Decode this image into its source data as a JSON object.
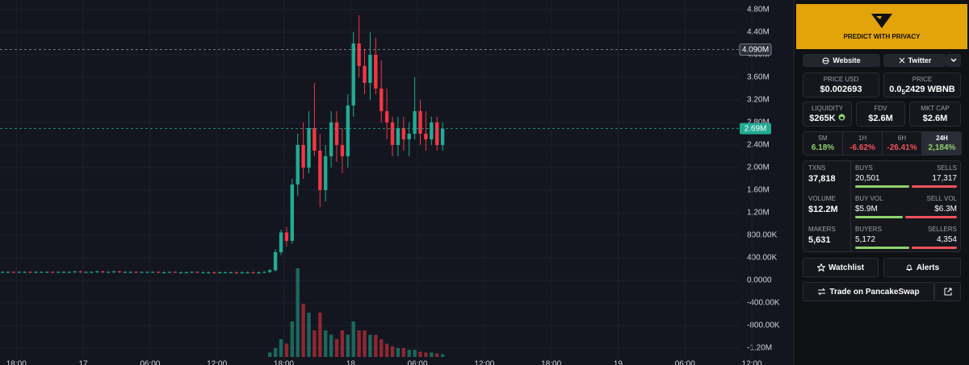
{
  "chart_data": {
    "type": "candlestick",
    "open": [
      0.15,
      0.15,
      0.15,
      0.14,
      0.15,
      0.15,
      0.14,
      0.15,
      0.15,
      0.15,
      0.14,
      0.15,
      0.15,
      0.15,
      0.16,
      0.15,
      0.15,
      0.15,
      0.16,
      0.15,
      0.15,
      0.16,
      0.15,
      0.15,
      0.15,
      0.14,
      0.15,
      0.15,
      0.15,
      0.14,
      0.14,
      0.15,
      0.14,
      0.14,
      0.14,
      0.15,
      0.14,
      0.14,
      0.14,
      0.13,
      0.14,
      0.14,
      0.14,
      0.13,
      0.14,
      0.14,
      0.13,
      0.14,
      0.15,
      0.18,
      0.5,
      0.85,
      0.7,
      1.7,
      2.4,
      2.0,
      2.7,
      2.3,
      1.6,
      2.2,
      2.8,
      2.4,
      2.2,
      3.1,
      4.2,
      3.8,
      3.5,
      4.0,
      3.4,
      3.0,
      2.8,
      2.4,
      2.7,
      2.5,
      2.6,
      3.0,
      2.6,
      2.5,
      2.8,
      2.4
    ],
    "high": [
      0.16,
      0.16,
      0.16,
      0.16,
      0.16,
      0.16,
      0.16,
      0.16,
      0.16,
      0.16,
      0.16,
      0.16,
      0.16,
      0.17,
      0.17,
      0.16,
      0.16,
      0.17,
      0.17,
      0.16,
      0.17,
      0.17,
      0.16,
      0.16,
      0.16,
      0.16,
      0.16,
      0.16,
      0.16,
      0.16,
      0.16,
      0.16,
      0.16,
      0.16,
      0.16,
      0.16,
      0.16,
      0.16,
      0.16,
      0.16,
      0.16,
      0.16,
      0.16,
      0.16,
      0.16,
      0.16,
      0.16,
      0.16,
      0.2,
      0.55,
      0.9,
      0.95,
      1.8,
      2.6,
      2.8,
      3.0,
      3.5,
      2.6,
      2.4,
      3.0,
      3.0,
      2.7,
      3.3,
      4.4,
      4.7,
      4.1,
      4.4,
      4.3,
      3.9,
      3.4,
      2.9,
      2.9,
      2.9,
      2.8,
      3.6,
      3.2,
      3.0,
      2.9,
      2.9,
      2.8
    ],
    "low": [
      0.13,
      0.13,
      0.13,
      0.13,
      0.13,
      0.13,
      0.13,
      0.13,
      0.13,
      0.13,
      0.13,
      0.13,
      0.13,
      0.13,
      0.13,
      0.13,
      0.13,
      0.13,
      0.13,
      0.13,
      0.13,
      0.13,
      0.13,
      0.13,
      0.13,
      0.13,
      0.13,
      0.13,
      0.13,
      0.13,
      0.13,
      0.13,
      0.13,
      0.13,
      0.13,
      0.13,
      0.13,
      0.13,
      0.12,
      0.12,
      0.13,
      0.13,
      0.12,
      0.12,
      0.13,
      0.12,
      0.12,
      0.13,
      0.13,
      0.16,
      0.45,
      0.6,
      0.65,
      1.5,
      1.8,
      1.9,
      2.2,
      1.3,
      1.4,
      2.0,
      2.1,
      1.9,
      2.0,
      2.9,
      3.6,
      3.3,
      3.2,
      3.3,
      2.8,
      2.5,
      2.2,
      2.2,
      2.3,
      2.2,
      2.5,
      2.4,
      2.3,
      2.4,
      2.3,
      2.3
    ],
    "close": [
      0.15,
      0.15,
      0.14,
      0.15,
      0.15,
      0.14,
      0.15,
      0.15,
      0.15,
      0.14,
      0.15,
      0.15,
      0.15,
      0.16,
      0.15,
      0.15,
      0.15,
      0.16,
      0.15,
      0.15,
      0.16,
      0.15,
      0.15,
      0.15,
      0.14,
      0.15,
      0.15,
      0.15,
      0.14,
      0.14,
      0.15,
      0.14,
      0.14,
      0.14,
      0.15,
      0.14,
      0.14,
      0.14,
      0.13,
      0.14,
      0.14,
      0.14,
      0.13,
      0.14,
      0.14,
      0.13,
      0.14,
      0.15,
      0.18,
      0.5,
      0.85,
      0.7,
      1.7,
      2.4,
      2.0,
      2.7,
      2.3,
      1.6,
      2.2,
      2.8,
      2.4,
      2.2,
      3.1,
      4.2,
      3.8,
      3.5,
      4.0,
      3.4,
      3.0,
      2.8,
      2.4,
      2.7,
      2.5,
      2.6,
      3.0,
      2.6,
      2.5,
      2.8,
      2.4,
      2.69
    ],
    "volume": [
      0,
      0,
      0,
      0,
      0,
      0,
      0,
      0,
      0,
      0,
      0,
      0,
      0,
      0,
      0,
      0,
      0,
      0,
      0,
      0,
      0,
      0,
      0,
      0,
      0,
      0,
      0,
      0,
      0,
      0,
      0,
      0,
      0,
      0,
      0,
      0,
      0,
      0,
      0,
      0,
      0,
      0,
      0,
      0,
      0,
      0,
      0,
      0,
      0.5,
      1,
      2,
      1.5,
      4,
      10,
      6,
      5,
      3,
      5,
      3,
      2.5,
      2,
      3,
      2.5,
      4,
      3,
      3,
      2.5,
      2.5,
      2,
      1.5,
      1.2,
      1,
      1,
      0.8,
      0.8,
      0.6,
      0.5,
      0.5,
      0.4,
      0.3
    ],
    "up_color": "#22ab94",
    "down_color": "#f23645",
    "ylim": [
      -1.5,
      4.97
    ],
    "yticks": [
      {
        "value": 4.8,
        "label": "4.80M"
      },
      {
        "value": 4.4,
        "label": "4.40M"
      },
      {
        "value": 4.0,
        "label": "4.00M"
      },
      {
        "value": 3.6,
        "label": "3.60M"
      },
      {
        "value": 3.2,
        "label": "3.20M"
      },
      {
        "value": 2.8,
        "label": "2.80M"
      },
      {
        "value": 2.4,
        "label": "2.40M"
      },
      {
        "value": 2.0,
        "label": "2.00M"
      },
      {
        "value": 1.6,
        "label": "1.60M"
      },
      {
        "value": 1.2,
        "label": "1.20M"
      },
      {
        "value": 0.8,
        "label": "800.00K"
      },
      {
        "value": 0.4,
        "label": "400.00K"
      },
      {
        "value": 0,
        "label": "0.0000"
      },
      {
        "value": -0.4,
        "label": "-400.00K"
      },
      {
        "value": -0.8,
        "label": "-800.00K"
      },
      {
        "value": -1.2,
        "label": "-1.20M"
      }
    ],
    "xticks": [
      {
        "value": 2.5,
        "label": "18:00"
      },
      {
        "value": 14.5,
        "label": "17"
      },
      {
        "value": 26.5,
        "label": "06:00"
      },
      {
        "value": 38.5,
        "label": "12:00"
      },
      {
        "value": 50.5,
        "label": "18:00"
      },
      {
        "value": 62.5,
        "label": "18"
      },
      {
        "value": 74.5,
        "label": "06:00"
      },
      {
        "value": 86.5,
        "label": "12:00"
      },
      {
        "value": 98.5,
        "label": "18:00"
      },
      {
        "value": 110.5,
        "label": "19"
      },
      {
        "value": 122.5,
        "label": "06:00"
      },
      {
        "value": 134.5,
        "label": "12:00"
      }
    ],
    "price_lines": [
      {
        "value": 4.09,
        "label": "4.090M",
        "color": "#2a2e39",
        "line": "#9598a1"
      },
      {
        "value": 2.69,
        "label": "2.69M",
        "color": "#22ab94",
        "line": "#22ab94"
      }
    ],
    "grid": true
  },
  "sidebar": {
    "banner": "PREDICT WITH PRIVACY",
    "links": [
      "Website",
      "Twitter"
    ],
    "price_usd": {
      "label": "PRICE USD",
      "value": "$0.002693"
    },
    "price_native": {
      "label": "PRICE",
      "prefix": "0.0",
      "subscript": "5",
      "value": "2429 WBNB"
    },
    "stats": [
      {
        "label": "LIQUIDITY",
        "value": "$265K"
      },
      {
        "label": "FDV",
        "value": "$2.6M"
      },
      {
        "label": "MKT CAP",
        "value": "$2.6M"
      }
    ],
    "timeframes": [
      {
        "label": "5M",
        "change": "6.18%"
      },
      {
        "label": "1H",
        "change": "-6.62%"
      },
      {
        "label": "6H",
        "change": "-26.41%"
      },
      {
        "label": "24H",
        "change": "2,184%"
      }
    ],
    "rows": [
      {
        "total": {
          "label": "TXNS",
          "value": "37,818"
        },
        "left": {
          "label": "BUYS",
          "value": 20501,
          "value_label": "20,501"
        },
        "right": {
          "label": "SELLS",
          "value": 17317,
          "value_label": "17,317"
        }
      },
      {
        "total": {
          "label": "VOLUME",
          "value": "$12.2M"
        },
        "left": {
          "label": "BUY VOL",
          "value": 5.9,
          "value_label": "$5.9M"
        },
        "right": {
          "label": "SELL VOL",
          "value": 6.3,
          "value_label": "$6.3M"
        }
      },
      {
        "total": {
          "label": "MAKERS",
          "value": "5,631"
        },
        "left": {
          "label": "BUYERS",
          "value": 5172,
          "value_label": "5,172"
        },
        "right": {
          "label": "SELLERS",
          "value": 4354,
          "value_label": "4,354"
        }
      }
    ],
    "buttons": [
      "Watchlist",
      "Alerts",
      "Trade on PancakeSwap"
    ]
  }
}
